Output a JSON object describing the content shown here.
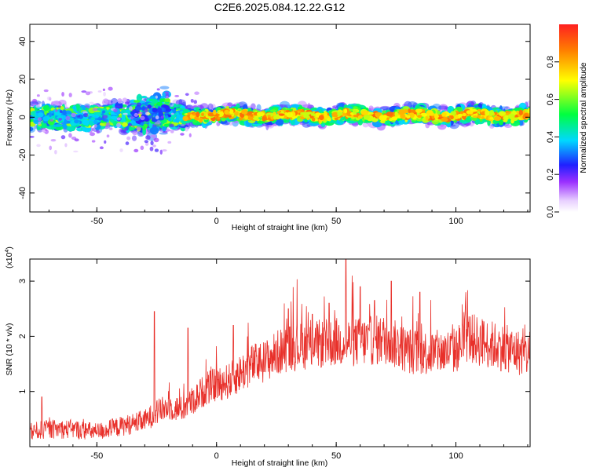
{
  "title": "C2E6.2025.084.12.22.G12",
  "colors": {
    "snr_line": "#e8302a",
    "axes": "#000000",
    "colormap": [
      "#ffffff",
      "#e8d0ff",
      "#9b30ff",
      "#2020ff",
      "#00d8ff",
      "#00ff40",
      "#ffff00",
      "#ff2020"
    ]
  },
  "chart_data": [
    {
      "type": "heatmap",
      "xlabel": "Height of straight line (km)",
      "ylabel": "Frequency (Hz)",
      "xlim": [
        -78,
        131
      ],
      "ylim": [
        -50,
        49
      ],
      "xticks": [
        "-50",
        "0",
        "50",
        "100"
      ],
      "xtick_values": [
        -50,
        0,
        50,
        100
      ],
      "yticks": [
        "40",
        "20",
        "0",
        "-20",
        "-40"
      ],
      "ytick_values": [
        40,
        20,
        0,
        -20,
        -40
      ],
      "grid": false,
      "colorbar": {
        "label": "Normalized spectral amplitude",
        "range": [
          0,
          1
        ],
        "ticks": [
          "0.0",
          "0.2",
          "0.4",
          "0.6",
          "0.8"
        ],
        "tick_values": [
          0.0,
          0.2,
          0.4,
          0.6,
          0.8
        ]
      },
      "bands": [
        {
          "x": [
            -78,
            -13
          ],
          "center_hz": 0,
          "half_width_hz": 6,
          "peak_amplitude": 0.45
        },
        {
          "x": [
            -35,
            -20
          ],
          "center_hz": 2,
          "half_width_hz": 10,
          "peak_amplitude": 0.35
        },
        {
          "x": [
            -13,
            131
          ],
          "center_hz": 1,
          "half_width_hz": 4,
          "peak_amplitude": 0.95
        }
      ]
    },
    {
      "type": "line",
      "xlabel": "Height of straight line (km)",
      "ylabel": "SNR (10 * v/v)",
      "y_scale_label": "(x10",
      "y_scale_exp": "4",
      "y_scale_suffix": ")",
      "xlim": [
        -78,
        131
      ],
      "ylim": [
        0,
        3.4
      ],
      "xticks": [
        "-50",
        "0",
        "50",
        "100"
      ],
      "xtick_values": [
        -50,
        0,
        50,
        100
      ],
      "yticks": [
        "1",
        "2",
        "3"
      ],
      "ytick_values": [
        1,
        2,
        3
      ],
      "grid": false,
      "series": [
        {
          "color": "#e8302a",
          "x": [
            -78,
            -70,
            -60,
            -50,
            -40,
            -30,
            -25,
            -20,
            -15,
            -10,
            -5,
            0,
            5,
            10,
            15,
            20,
            25,
            30,
            40,
            50,
            60,
            70,
            80,
            90,
            100,
            105,
            110,
            120,
            131
          ],
          "y": [
            0.25,
            0.3,
            0.3,
            0.25,
            0.35,
            0.45,
            0.6,
            0.7,
            0.65,
            0.8,
            1.0,
            1.1,
            1.15,
            1.3,
            1.45,
            1.5,
            1.65,
            1.75,
            1.8,
            1.85,
            1.85,
            1.9,
            1.7,
            1.65,
            1.7,
            1.95,
            1.85,
            1.75,
            1.6
          ],
          "spikes": [
            {
              "x": -73,
              "y": 0.9
            },
            {
              "x": -26,
              "y": 2.45
            },
            {
              "x": -12,
              "y": 2.15
            },
            {
              "x": 7,
              "y": 2.2
            },
            {
              "x": 30,
              "y": 2.5
            },
            {
              "x": 40,
              "y": 2.4
            },
            {
              "x": 47,
              "y": 2.6
            },
            {
              "x": 54,
              "y": 3.4
            },
            {
              "x": 60,
              "y": 2.9
            },
            {
              "x": 66,
              "y": 2.65
            },
            {
              "x": 73,
              "y": 3.0
            },
            {
              "x": 85,
              "y": 2.8
            }
          ]
        }
      ]
    }
  ]
}
